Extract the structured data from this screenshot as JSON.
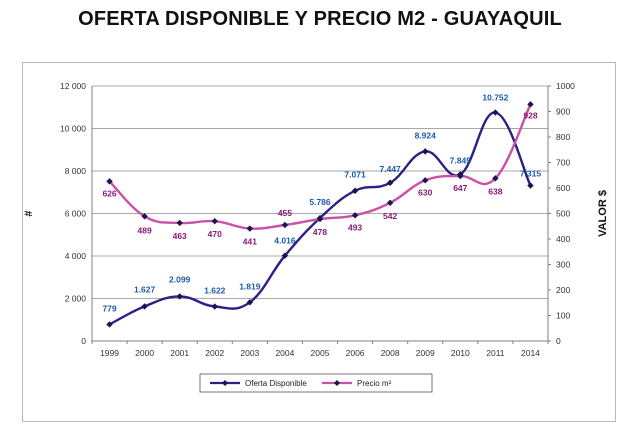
{
  "chart_data": {
    "type": "line",
    "title": "OFERTA DISPONIBLE Y PRECIO M2 - GUAYAQUIL",
    "categories": [
      "1999",
      "2000",
      "2001",
      "2002",
      "2003",
      "2004",
      "2005",
      "2006",
      "2008",
      "2009",
      "2010",
      "2011",
      "2014"
    ],
    "left_axis": {
      "label": "#",
      "ylim": [
        0,
        12000
      ],
      "ticks": [
        0,
        2000,
        4000,
        6000,
        8000,
        10000,
        12000
      ],
      "tick_labels": [
        "0",
        "2 000",
        "4 000",
        "6 000",
        "8 000",
        "10 000",
        "12 000"
      ]
    },
    "right_axis": {
      "label": "VALOR $",
      "ylim": [
        0,
        1000
      ],
      "ticks": [
        0,
        100,
        200,
        300,
        400,
        500,
        600,
        700,
        800,
        900,
        1000
      ],
      "tick_labels": [
        "0",
        "100",
        "200",
        "300",
        "400",
        "500",
        "600",
        "700",
        "800",
        "900",
        "1000"
      ]
    },
    "grid": true,
    "series": [
      {
        "name": "Oferta Disponible",
        "axis": "left",
        "color": "#2e1f86",
        "values": [
          779,
          1627,
          2099,
          1622,
          1819,
          4016,
          5786,
          7071,
          7447,
          8924,
          7845,
          10752,
          7315
        ],
        "labels": [
          "779",
          "1.627",
          "2.099",
          "1.622",
          "1.819",
          "4.016",
          "5.786",
          "7.071",
          "7.447",
          "8.924",
          "7.845",
          "10.752",
          "7.315"
        ],
        "label_color": "#1f5aa8"
      },
      {
        "name": "Precio m²",
        "axis": "right",
        "color": "#cc4fa8",
        "values": [
          626,
          489,
          463,
          470,
          441,
          455,
          478,
          493,
          542,
          630,
          647,
          638,
          928
        ],
        "labels": [
          "626",
          "489",
          "463",
          "470",
          "441",
          "455",
          "478",
          "493",
          "542",
          "630",
          "647",
          "638",
          "928"
        ],
        "label_color": "#8a1a78"
      }
    ],
    "legend_position": "bottom-center"
  }
}
